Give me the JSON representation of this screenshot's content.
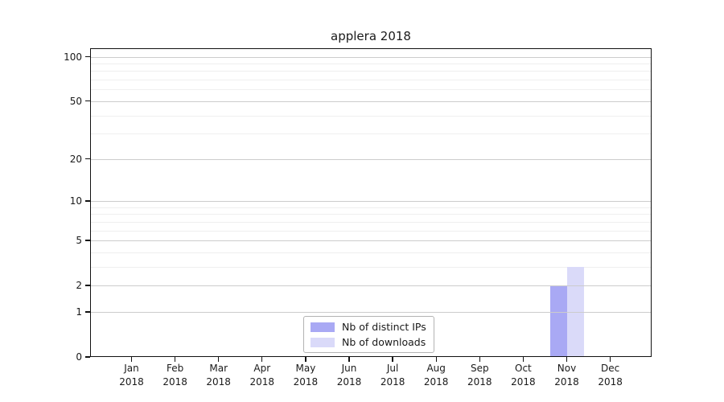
{
  "chart_data": {
    "type": "bar",
    "title": "applera 2018",
    "scale": "log1p",
    "ylim": [
      0,
      114
    ],
    "yticks_major": [
      0,
      1,
      2,
      5,
      10,
      20,
      50,
      100
    ],
    "yticks_minor": [
      3,
      4,
      6,
      7,
      8,
      9,
      30,
      40,
      60,
      70,
      80,
      90
    ],
    "grid": true,
    "legend_position": "lower center",
    "categories": [
      {
        "month": "Jan",
        "year": "2018"
      },
      {
        "month": "Feb",
        "year": "2018"
      },
      {
        "month": "Mar",
        "year": "2018"
      },
      {
        "month": "Apr",
        "year": "2018"
      },
      {
        "month": "May",
        "year": "2018"
      },
      {
        "month": "Jun",
        "year": "2018"
      },
      {
        "month": "Jul",
        "year": "2018"
      },
      {
        "month": "Aug",
        "year": "2018"
      },
      {
        "month": "Sep",
        "year": "2018"
      },
      {
        "month": "Oct",
        "year": "2018"
      },
      {
        "month": "Nov",
        "year": "2018"
      },
      {
        "month": "Dec",
        "year": "2018"
      }
    ],
    "series": [
      {
        "name": "Nb of distinct IPs",
        "color": "#a9a9f4",
        "values": [
          0,
          0,
          0,
          0,
          0,
          0,
          0,
          0,
          0,
          0,
          2,
          0
        ]
      },
      {
        "name": "Nb of downloads",
        "color": "#dadaf9",
        "values": [
          0,
          0,
          0,
          0,
          0,
          0,
          0,
          0,
          0,
          0,
          3,
          0
        ]
      }
    ],
    "colors": {
      "grid_major": "#cccccc",
      "grid_minor": "#efefef",
      "axis": "#111111",
      "background": "#ffffff"
    }
  }
}
